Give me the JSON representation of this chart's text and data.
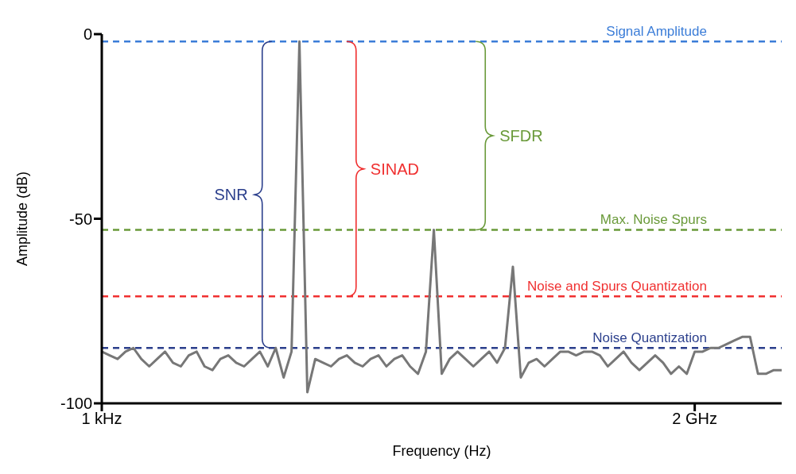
{
  "chart_data": {
    "type": "line",
    "xlabel": "Frequency (Hz)",
    "ylabel": "Amplitude (dB)",
    "categories": [
      "1 kHz",
      null,
      null,
      null,
      null,
      null,
      null,
      null,
      null,
      null,
      null,
      null,
      null,
      null,
      null,
      null,
      null,
      null,
      null,
      null,
      null,
      null,
      null,
      null,
      null,
      null,
      null,
      null,
      null,
      null,
      null,
      null,
      null,
      null,
      null,
      null,
      null,
      null,
      null,
      null,
      null,
      null,
      null,
      null,
      null,
      null,
      null,
      null,
      null,
      null,
      null,
      null,
      null,
      null,
      null,
      null,
      null,
      null,
      null,
      null,
      null,
      null,
      null,
      null,
      null,
      null,
      null,
      null,
      null,
      null,
      null,
      null,
      null,
      null,
      null,
      "2 GHz",
      null,
      null,
      null,
      null,
      null,
      null,
      null,
      null,
      null,
      null,
      null
    ],
    "series": [
      {
        "color": "#777777",
        "values": [
          -86,
          -87,
          -88,
          -86,
          -85,
          -88,
          -90,
          -88,
          -86,
          -89,
          -90,
          -87,
          -86,
          -90,
          -91,
          -88,
          -87,
          -89,
          -90,
          -88,
          -86,
          -90,
          -85,
          -93,
          -86,
          -2,
          -97,
          -88,
          -89,
          -90,
          -88,
          -87,
          -89,
          -90,
          -88,
          -87,
          -90,
          -88,
          -87,
          -90,
          -92,
          -86,
          -53,
          -92,
          -88,
          -86,
          -88,
          -90,
          -88,
          -86,
          -89,
          -85,
          -63,
          -93,
          -89,
          -88,
          -90,
          -88,
          -86,
          -86,
          -87,
          -86,
          -86,
          -87,
          -90,
          -88,
          -86,
          -89,
          -91,
          -89,
          -87,
          -89,
          -92,
          -90,
          -92,
          -86,
          -86,
          -85,
          -85,
          -84,
          -83,
          -82,
          -82,
          -92,
          -92,
          -91,
          -91
        ]
      }
    ],
    "ylim": [
      -100,
      0
    ],
    "yticks": [
      0,
      -50,
      -100
    ],
    "marker": "none",
    "grid": false,
    "legend": false,
    "ref_lines": [
      {
        "axis": "y",
        "value": -2,
        "label": "Signal Amplitude",
        "color": "#3b7dd8",
        "line_style": "dashed"
      },
      {
        "axis": "y",
        "value": -53,
        "label": "Max. Noise Spurs",
        "color": "#6a9a3a",
        "line_style": "dashed"
      },
      {
        "axis": "y",
        "value": -71,
        "label": "Noise and Spurs Quantization",
        "color": "#f03030",
        "line_style": "dashed"
      },
      {
        "axis": "y",
        "value": -85,
        "label": "Noise Quantization",
        "color": "#2b3f8c",
        "line_style": "dashed"
      }
    ],
    "annotations": [
      "SNR",
      "SINAD",
      "SFDR"
    ]
  }
}
